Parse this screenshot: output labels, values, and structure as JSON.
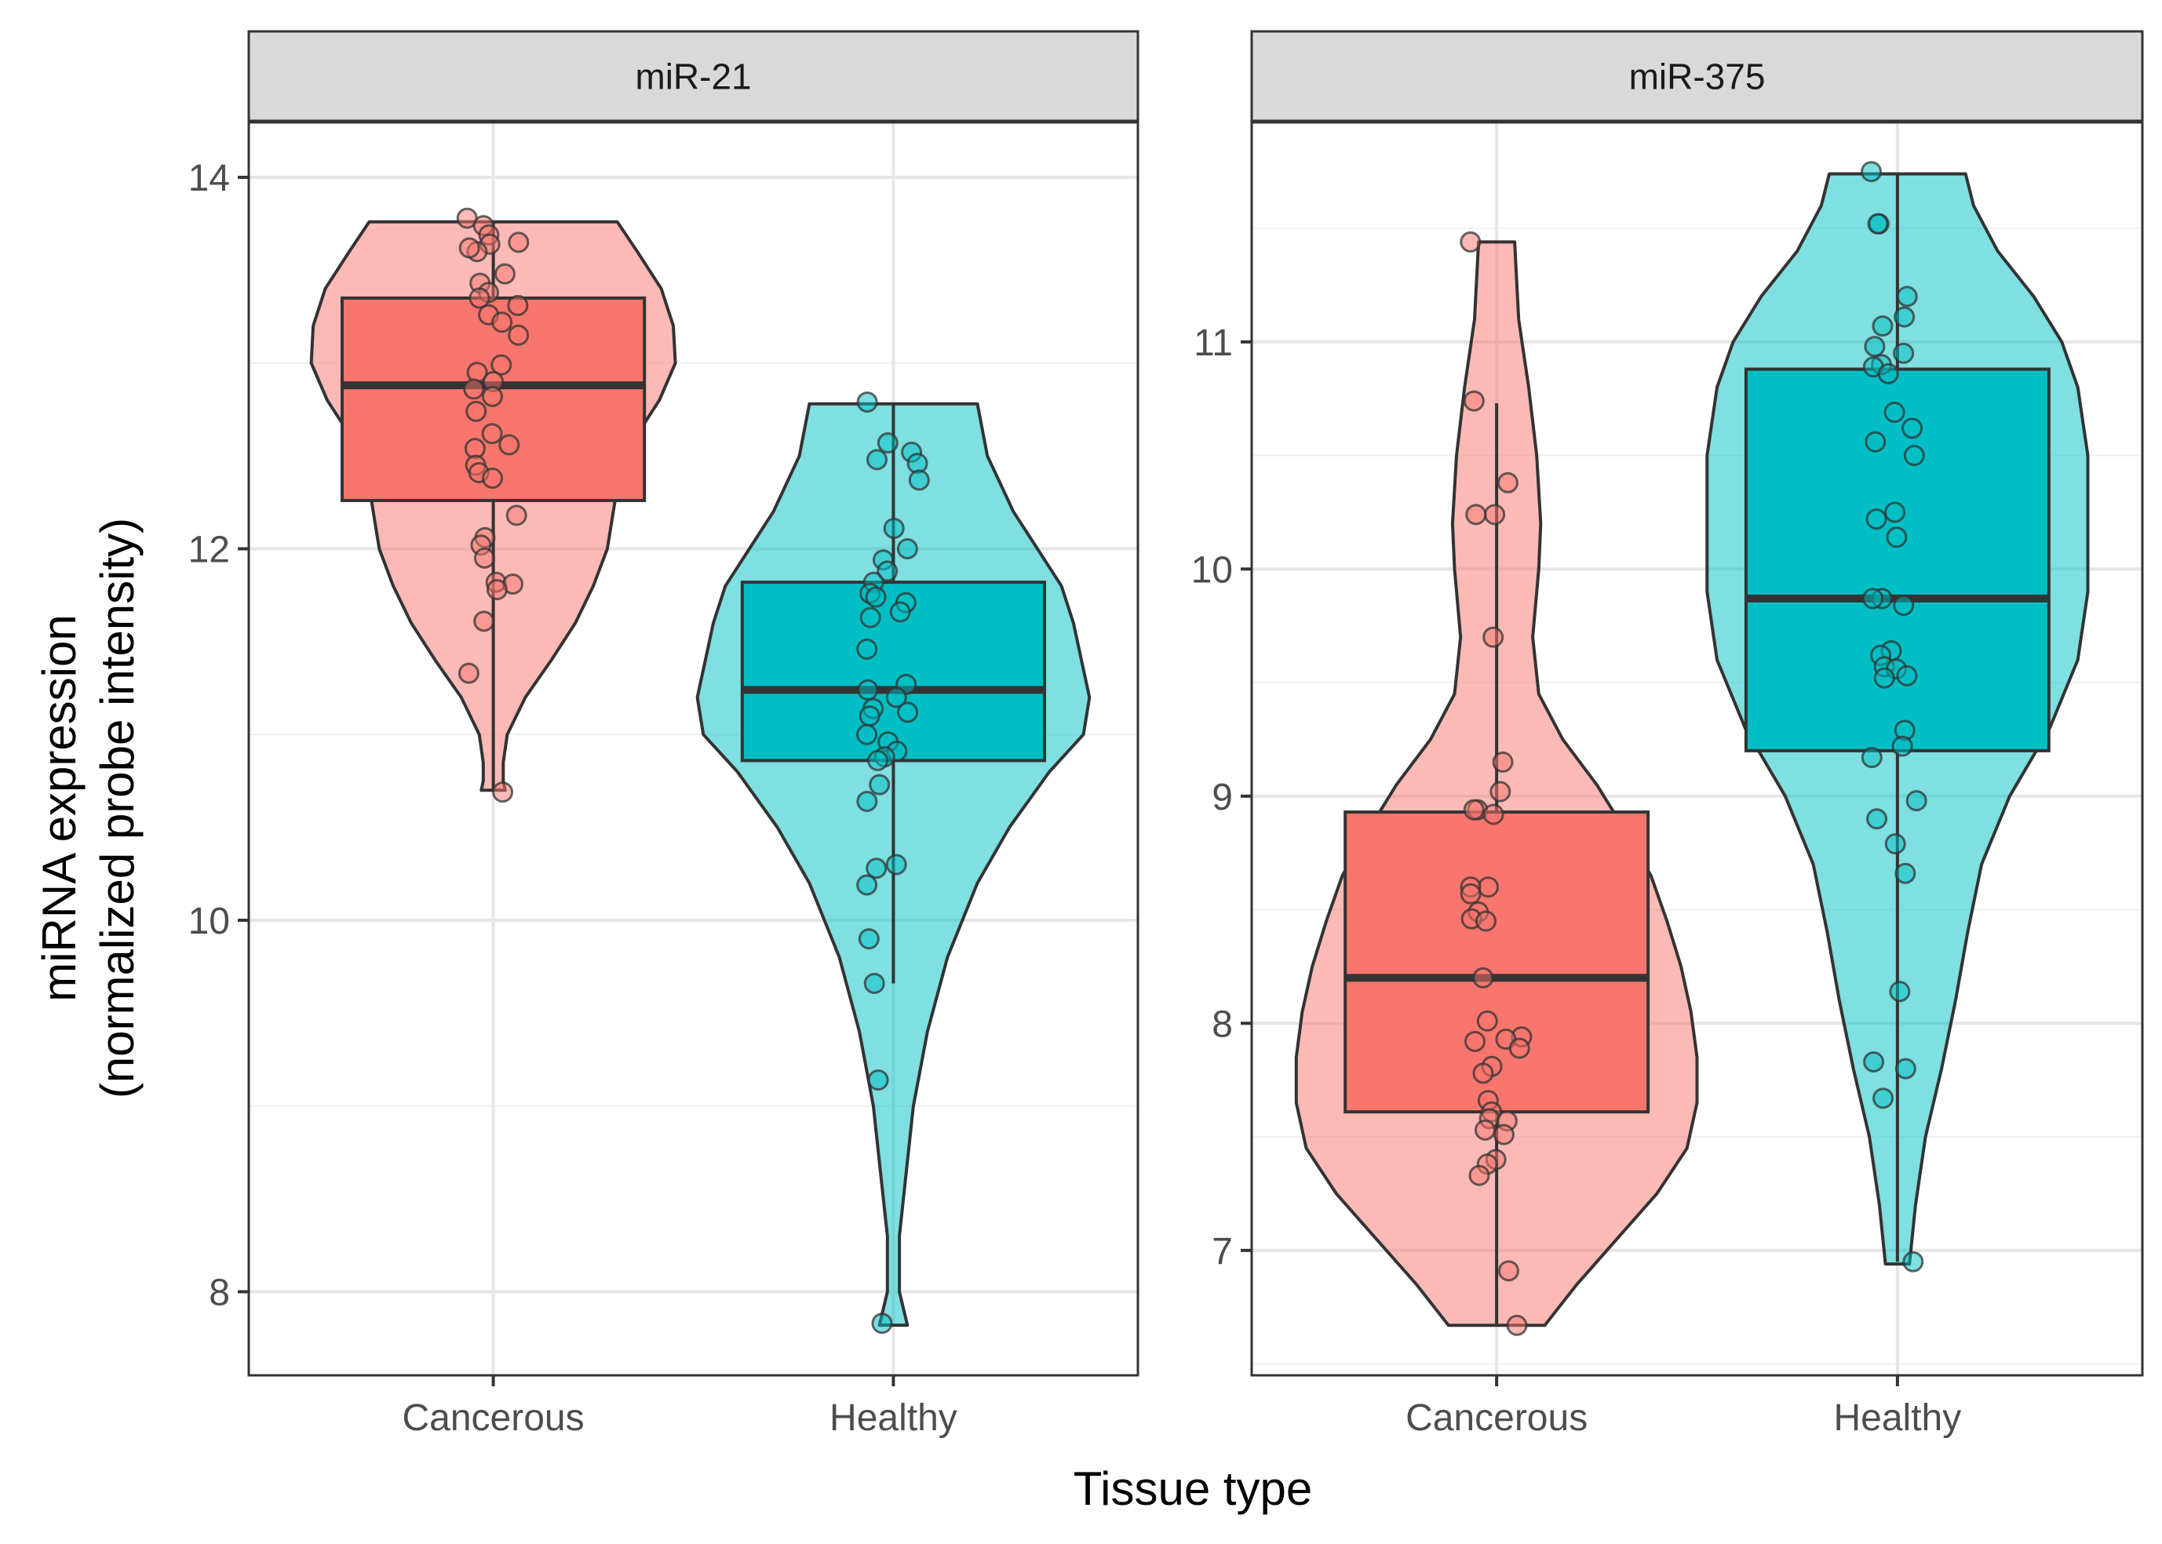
{
  "chart_data": {
    "type": "violin",
    "xlabel": "Tissue type",
    "ylabel_line1": "miRNA expression",
    "ylabel_line2": "(normalized probe intensity)",
    "colors": {
      "Cancerous": "#F8766D",
      "Healthy": "#00BFC4"
    },
    "grid": true,
    "legend": "none",
    "panels": [
      {
        "title": "miR-21",
        "ylim": [
          7.55,
          14.3
        ],
        "yticks": [
          8,
          10,
          12,
          14
        ],
        "categories": [
          "Cancerous",
          "Healthy"
        ],
        "groups": [
          {
            "name": "Cancerous",
            "box": {
              "q1": 12.26,
              "median": 12.88,
              "q3": 13.35,
              "whisker_low": 10.7,
              "whisker_high": 13.76
            },
            "violin": {
              "min": 10.7,
              "max": 13.76,
              "profile": [
                [
                  10.7,
                  0.06
                ],
                [
                  10.75,
                  0.05
                ],
                [
                  10.85,
                  0.05
                ],
                [
                  11.0,
                  0.07
                ],
                [
                  11.2,
                  0.16
                ],
                [
                  11.4,
                  0.29
                ],
                [
                  11.6,
                  0.41
                ],
                [
                  11.8,
                  0.5
                ],
                [
                  12.0,
                  0.57
                ],
                [
                  12.2,
                  0.6
                ],
                [
                  12.4,
                  0.63
                ],
                [
                  12.6,
                  0.71
                ],
                [
                  12.8,
                  0.83
                ],
                [
                  13.0,
                  0.91
                ],
                [
                  13.2,
                  0.9
                ],
                [
                  13.4,
                  0.84
                ],
                [
                  13.6,
                  0.72
                ],
                [
                  13.76,
                  0.62
                ]
              ]
            },
            "points": [
              13.78,
              13.74,
              13.69,
              13.65,
              13.64,
              13.6,
              13.62,
              13.48,
              13.43,
              13.38,
              13.35,
              13.31,
              13.26,
              13.22,
              13.15,
              12.99,
              12.95,
              12.9,
              12.86,
              12.82,
              12.74,
              12.62,
              12.56,
              12.54,
              12.45,
              12.41,
              12.38,
              12.18,
              12.06,
              12.02,
              11.95,
              11.82,
              11.81,
              11.78,
              11.61,
              11.33,
              10.69
            ]
          },
          {
            "name": "Healthy",
            "box": {
              "q1": 10.86,
              "median": 11.24,
              "q3": 11.82,
              "whisker_low": 9.66,
              "whisker_high": 12.78
            },
            "violin": {
              "min": 7.82,
              "max": 12.78,
              "profile": [
                [
                  7.82,
                  0.07
                ],
                [
                  8.0,
                  0.03
                ],
                [
                  8.3,
                  0.03
                ],
                [
                  8.6,
                  0.06
                ],
                [
                  9.0,
                  0.1
                ],
                [
                  9.4,
                  0.17
                ],
                [
                  9.8,
                  0.27
                ],
                [
                  10.2,
                  0.42
                ],
                [
                  10.5,
                  0.58
                ],
                [
                  10.8,
                  0.78
                ],
                [
                  11.0,
                  0.95
                ],
                [
                  11.2,
                  0.98
                ],
                [
                  11.4,
                  0.94
                ],
                [
                  11.6,
                  0.9
                ],
                [
                  11.8,
                  0.84
                ],
                [
                  12.0,
                  0.72
                ],
                [
                  12.2,
                  0.6
                ],
                [
                  12.5,
                  0.47
                ],
                [
                  12.78,
                  0.42
                ]
              ]
            },
            "points": [
              12.79,
              12.57,
              12.52,
              12.48,
              12.46,
              12.37,
              12.11,
              12.0,
              11.94,
              11.88,
              11.82,
              11.76,
              11.74,
              11.71,
              11.66,
              11.63,
              11.46,
              11.27,
              11.24,
              11.2,
              11.14,
              11.12,
              11.1,
              11.0,
              10.96,
              10.91,
              10.88,
              10.86,
              10.73,
              10.64,
              10.3,
              10.28,
              10.19,
              9.9,
              9.66,
              9.14,
              7.83
            ]
          }
        ]
      },
      {
        "title": "miR-375",
        "ylim": [
          6.45,
          11.97
        ],
        "yticks": [
          7,
          8,
          9,
          10,
          11
        ],
        "categories": [
          "Cancerous",
          "Healthy"
        ],
        "groups": [
          {
            "name": "Cancerous",
            "box": {
              "q1": 7.61,
              "median": 8.2,
              "q3": 8.93,
              "whisker_low": 6.67,
              "whisker_high": 10.73
            },
            "violin": {
              "min": 6.67,
              "max": 11.44,
              "profile": [
                [
                  6.67,
                  0.24
                ],
                [
                  6.85,
                  0.4
                ],
                [
                  7.05,
                  0.6
                ],
                [
                  7.25,
                  0.8
                ],
                [
                  7.45,
                  0.95
                ],
                [
                  7.65,
                  1.0
                ],
                [
                  7.85,
                  1.0
                ],
                [
                  8.05,
                  0.97
                ],
                [
                  8.25,
                  0.92
                ],
                [
                  8.45,
                  0.85
                ],
                [
                  8.65,
                  0.77
                ],
                [
                  8.85,
                  0.64
                ],
                [
                  9.05,
                  0.5
                ],
                [
                  9.25,
                  0.33
                ],
                [
                  9.45,
                  0.21
                ],
                [
                  9.7,
                  0.18
                ],
                [
                  10.0,
                  0.21
                ],
                [
                  10.2,
                  0.22
                ],
                [
                  10.5,
                  0.2
                ],
                [
                  10.8,
                  0.16
                ],
                [
                  11.1,
                  0.11
                ],
                [
                  11.44,
                  0.09
                ]
              ]
            },
            "points": [
              11.44,
              10.74,
              10.38,
              10.24,
              10.24,
              9.7,
              9.15,
              9.02,
              8.94,
              8.94,
              8.92,
              8.6,
              8.6,
              8.57,
              8.49,
              8.46,
              8.45,
              8.2,
              8.01,
              7.94,
              7.93,
              7.92,
              7.89,
              7.81,
              7.78,
              7.66,
              7.61,
              7.58,
              7.57,
              7.53,
              7.51,
              7.4,
              7.38,
              7.33,
              6.91,
              6.67
            ]
          },
          {
            "name": "Healthy",
            "box": {
              "q1": 9.2,
              "median": 9.87,
              "q3": 10.88,
              "whisker_low": 6.95,
              "whisker_high": 11.74
            },
            "violin": {
              "min": 6.94,
              "max": 11.74,
              "profile": [
                [
                  6.94,
                  0.06
                ],
                [
                  7.2,
                  0.09
                ],
                [
                  7.5,
                  0.14
                ],
                [
                  7.8,
                  0.22
                ],
                [
                  8.1,
                  0.29
                ],
                [
                  8.4,
                  0.35
                ],
                [
                  8.7,
                  0.42
                ],
                [
                  9.0,
                  0.56
                ],
                [
                  9.3,
                  0.76
                ],
                [
                  9.6,
                  0.9
                ],
                [
                  9.9,
                  0.95
                ],
                [
                  10.2,
                  0.95
                ],
                [
                  10.5,
                  0.95
                ],
                [
                  10.8,
                  0.9
                ],
                [
                  11.0,
                  0.82
                ],
                [
                  11.2,
                  0.68
                ],
                [
                  11.4,
                  0.5
                ],
                [
                  11.6,
                  0.38
                ],
                [
                  11.74,
                  0.34
                ]
              ]
            },
            "points": [
              11.75,
              11.52,
              11.52,
              11.2,
              11.11,
              11.07,
              10.98,
              10.95,
              10.9,
              10.89,
              10.86,
              10.69,
              10.62,
              10.56,
              10.5,
              10.25,
              10.22,
              10.14,
              9.87,
              9.87,
              9.84,
              9.64,
              9.62,
              9.57,
              9.56,
              9.53,
              9.52,
              9.29,
              9.22,
              9.17,
              8.98,
              8.9,
              8.79,
              8.66,
              8.14,
              7.83,
              7.8,
              7.67,
              6.95
            ]
          }
        ]
      }
    ]
  }
}
